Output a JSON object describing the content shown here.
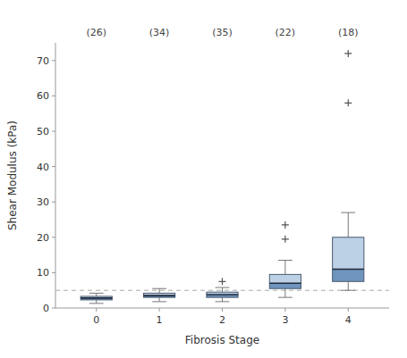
{
  "chart_data": {
    "type": "box",
    "x": [
      0,
      1,
      2,
      3,
      4
    ],
    "xlim": [
      -0.65,
      4.65
    ],
    "xticks": [
      0,
      1,
      2,
      3,
      4
    ],
    "xlabel": "Fibrosis Stage",
    "ylabel": "Shear Modulus (kPa)",
    "ylim": [
      0,
      75
    ],
    "yticks": [
      0,
      10,
      20,
      30,
      40,
      50,
      60,
      70
    ],
    "annotations": [
      "(26)",
      "(34)",
      "(35)",
      "(22)",
      "(18)"
    ],
    "reference_line": 5.0,
    "grid": false,
    "boxes": [
      {
        "q1": 2.3,
        "median": 2.8,
        "q3": 3.3,
        "whisker_low": 1.3,
        "whisker_high": 4.2,
        "fliers": []
      },
      {
        "q1": 3.0,
        "median": 3.5,
        "q3": 4.2,
        "whisker_low": 1.8,
        "whisker_high": 5.5,
        "fliers": []
      },
      {
        "q1": 3.0,
        "median": 3.8,
        "q3": 4.5,
        "whisker_low": 1.8,
        "whisker_high": 5.8,
        "fliers": [
          7.5
        ]
      },
      {
        "q1": 5.5,
        "median": 7.0,
        "q3": 9.5,
        "whisker_low": 3.0,
        "whisker_high": 13.5,
        "fliers": [
          19.5,
          23.5
        ]
      },
      {
        "q1": 7.5,
        "median": 11.0,
        "q3": 20.0,
        "whisker_low": 5.0,
        "whisker_high": 27.0,
        "fliers": [
          58.0,
          72.0
        ]
      }
    ]
  }
}
